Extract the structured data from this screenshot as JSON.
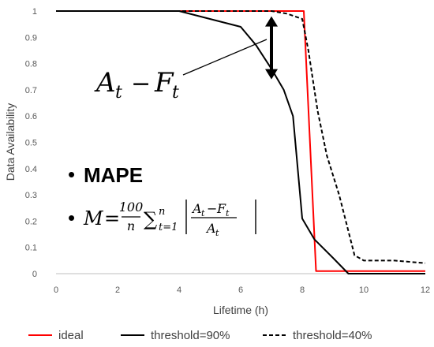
{
  "chart_data": {
    "type": "line",
    "xlabel": "Lifetime (h)",
    "ylabel": "Data Availability",
    "xlim": [
      0,
      12
    ],
    "ylim": [
      0,
      1
    ],
    "x_ticks": [
      0,
      2,
      4,
      6,
      8,
      10,
      12
    ],
    "y_ticks": [
      0,
      0.1,
      0.2,
      0.3,
      0.4,
      0.5,
      0.6,
      0.7,
      0.8,
      0.9,
      1
    ],
    "grid": false,
    "legend_position": "bottom",
    "series": [
      {
        "name": "ideal",
        "color": "#ff0000",
        "dash": "solid",
        "points": [
          [
            0,
            1
          ],
          [
            8,
            1
          ],
          [
            8.05,
            1
          ],
          [
            8.45,
            0.01
          ],
          [
            12,
            0.01
          ]
        ]
      },
      {
        "name": "threshold=90%",
        "color": "#000000",
        "dash": "solid",
        "points": [
          [
            0,
            1
          ],
          [
            4,
            1
          ],
          [
            6,
            0.94
          ],
          [
            6.5,
            0.87
          ],
          [
            7,
            0.78
          ],
          [
            7.4,
            0.7
          ],
          [
            7.7,
            0.6
          ],
          [
            8,
            0.21
          ],
          [
            8.4,
            0.13
          ],
          [
            9,
            0.06
          ],
          [
            9.5,
            0
          ],
          [
            12,
            0
          ]
        ]
      },
      {
        "name": "threshold=40%",
        "color": "#000000",
        "dash": "dashed",
        "points": [
          [
            0,
            1
          ],
          [
            7,
            1
          ],
          [
            7.5,
            0.99
          ],
          [
            8,
            0.97
          ],
          [
            8.2,
            0.85
          ],
          [
            8.5,
            0.62
          ],
          [
            8.8,
            0.45
          ],
          [
            9.2,
            0.3
          ],
          [
            9.7,
            0.07
          ],
          [
            10,
            0.05
          ],
          [
            11,
            0.05
          ],
          [
            12,
            0.04
          ]
        ]
      }
    ],
    "annotations": {
      "formula_label": {
        "base1": "A",
        "sub1": "t",
        "op": "−",
        "base2": "F",
        "sub2": "t"
      },
      "arrow": {
        "x": 7,
        "y_top": 0.98,
        "y_bottom": 0.74
      },
      "mape_title": "MAPE",
      "mape_formula": {
        "lhs": "M",
        "eq": "=",
        "num": "100",
        "den": "n",
        "sum_sym": "∑",
        "sum_lower": "t=1",
        "sum_upper": "n",
        "frac_num": "A",
        "frac_num_sub": "t",
        "frac_minus": "−",
        "frac_num2": "F",
        "frac_num2_sub": "t",
        "frac_den": "A",
        "frac_den_sub": "t"
      },
      "bullet": "•"
    }
  }
}
